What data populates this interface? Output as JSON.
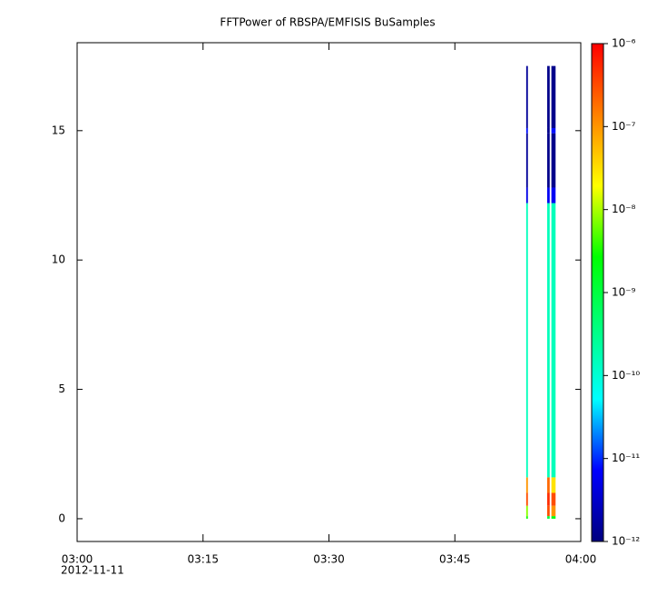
{
  "chart_data": {
    "type": "spectrogram",
    "title": "FFTPower of RBSPA/EMFISIS  BuSamples",
    "date_label": "2012-11-11",
    "xlim": [
      0,
      60
    ],
    "xticks": [
      {
        "value": 0,
        "label": "03:00"
      },
      {
        "value": 15,
        "label": "03:15"
      },
      {
        "value": 30,
        "label": "03:30"
      },
      {
        "value": 45,
        "label": "03:45"
      },
      {
        "value": 60,
        "label": "04:00"
      }
    ],
    "ylim": [
      -0.88,
      18.4
    ],
    "yticks": [
      0,
      5,
      10,
      15
    ],
    "y_bins": [
      0,
      0.1,
      0.5,
      1.0,
      1.6,
      12.2,
      12.8,
      14.9,
      15.1,
      17.5
    ],
    "columns": [
      {
        "x_start": 53.5,
        "x_end": 53.7,
        "values": [
          3e-09,
          8e-09,
          3e-07,
          1e-07,
          1.5e-10,
          5e-12,
          1.5e-12,
          8e-12,
          1.5e-12
        ]
      },
      {
        "x_start": 56.0,
        "x_end": 56.3,
        "values": [
          1e-09,
          3e-07,
          5e-07,
          2e-07,
          1.5e-10,
          6e-12,
          1.2e-12,
          1.2e-12,
          1.2e-12
        ]
      },
      {
        "x_start": 56.5,
        "x_end": 57.0,
        "values": [
          2e-09,
          1e-07,
          3e-07,
          3e-08,
          1.5e-10,
          6e-12,
          1.2e-12,
          8e-12,
          1.2e-12
        ]
      }
    ],
    "zlog": true,
    "zlim": [
      1e-12,
      1e-06
    ],
    "zticks": [
      {
        "value": 1e-06,
        "label": "10⁻⁶"
      },
      {
        "value": 1e-07,
        "label": "10⁻⁷"
      },
      {
        "value": 1e-08,
        "label": "10⁻⁸"
      },
      {
        "value": 1e-09,
        "label": "10⁻⁹"
      },
      {
        "value": 1e-10,
        "label": "10⁻¹⁰"
      },
      {
        "value": 1e-11,
        "label": "10⁻¹¹"
      },
      {
        "value": 1e-12,
        "label": "10⁻¹²"
      }
    ],
    "colormap": [
      "#00007f",
      "#0000ff",
      "#00ffff",
      "#00ff80",
      "#00ff00",
      "#ffff00",
      "#ff8000",
      "#ff0000"
    ]
  }
}
